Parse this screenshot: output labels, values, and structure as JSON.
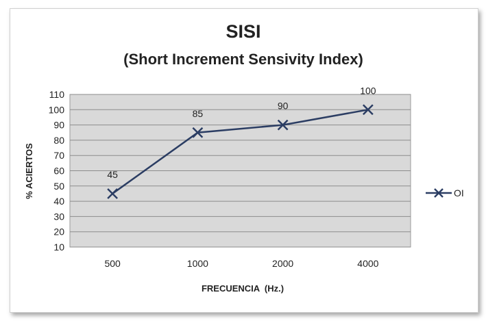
{
  "chart_data": {
    "type": "line",
    "title": "SISI",
    "subtitle": "(Short Increment Sensivity Index)",
    "xlabel": "FRECUENCIA  (Hz.)",
    "ylabel": "% ACIERTOS",
    "categories": [
      "500",
      "1000",
      "2000",
      "4000"
    ],
    "series": [
      {
        "name": "OI",
        "values": [
          45,
          85,
          90,
          100
        ],
        "marker": "x",
        "color": "#2b3d63"
      }
    ],
    "data_labels": [
      "45",
      "85",
      "90",
      "100"
    ],
    "ylim": [
      10,
      110
    ],
    "yticks": [
      "10",
      "20",
      "30",
      "40",
      "50",
      "60",
      "70",
      "80",
      "90",
      "100",
      "110"
    ],
    "grid": true,
    "legend": "right",
    "plot_background": "#d9d9d9"
  }
}
